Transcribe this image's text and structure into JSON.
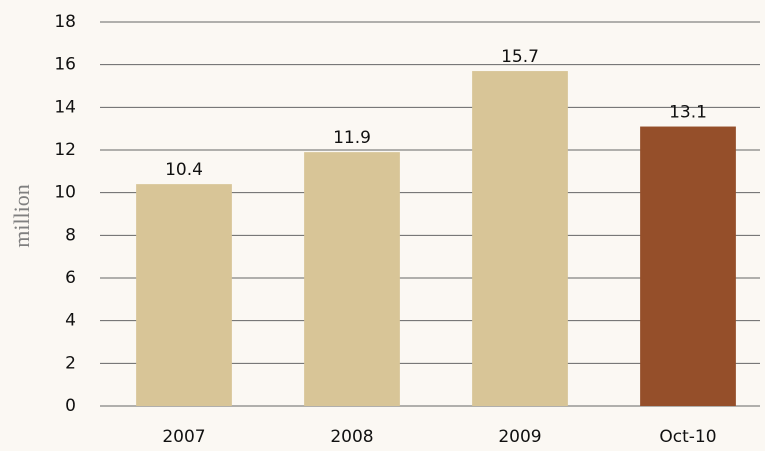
{
  "chart_data": {
    "type": "bar",
    "y_axis_label": "million",
    "categories": [
      "2007",
      "2008",
      "2009",
      "Oct-10"
    ],
    "values": [
      10.4,
      11.9,
      15.7,
      13.1
    ],
    "colors": [
      "#d8c597",
      "#d8c597",
      "#d8c597",
      "#954f2a"
    ],
    "ylim": [
      0,
      18
    ],
    "yticks": [
      0,
      2,
      4,
      6,
      8,
      10,
      12,
      14,
      16,
      18
    ],
    "grid": true
  }
}
